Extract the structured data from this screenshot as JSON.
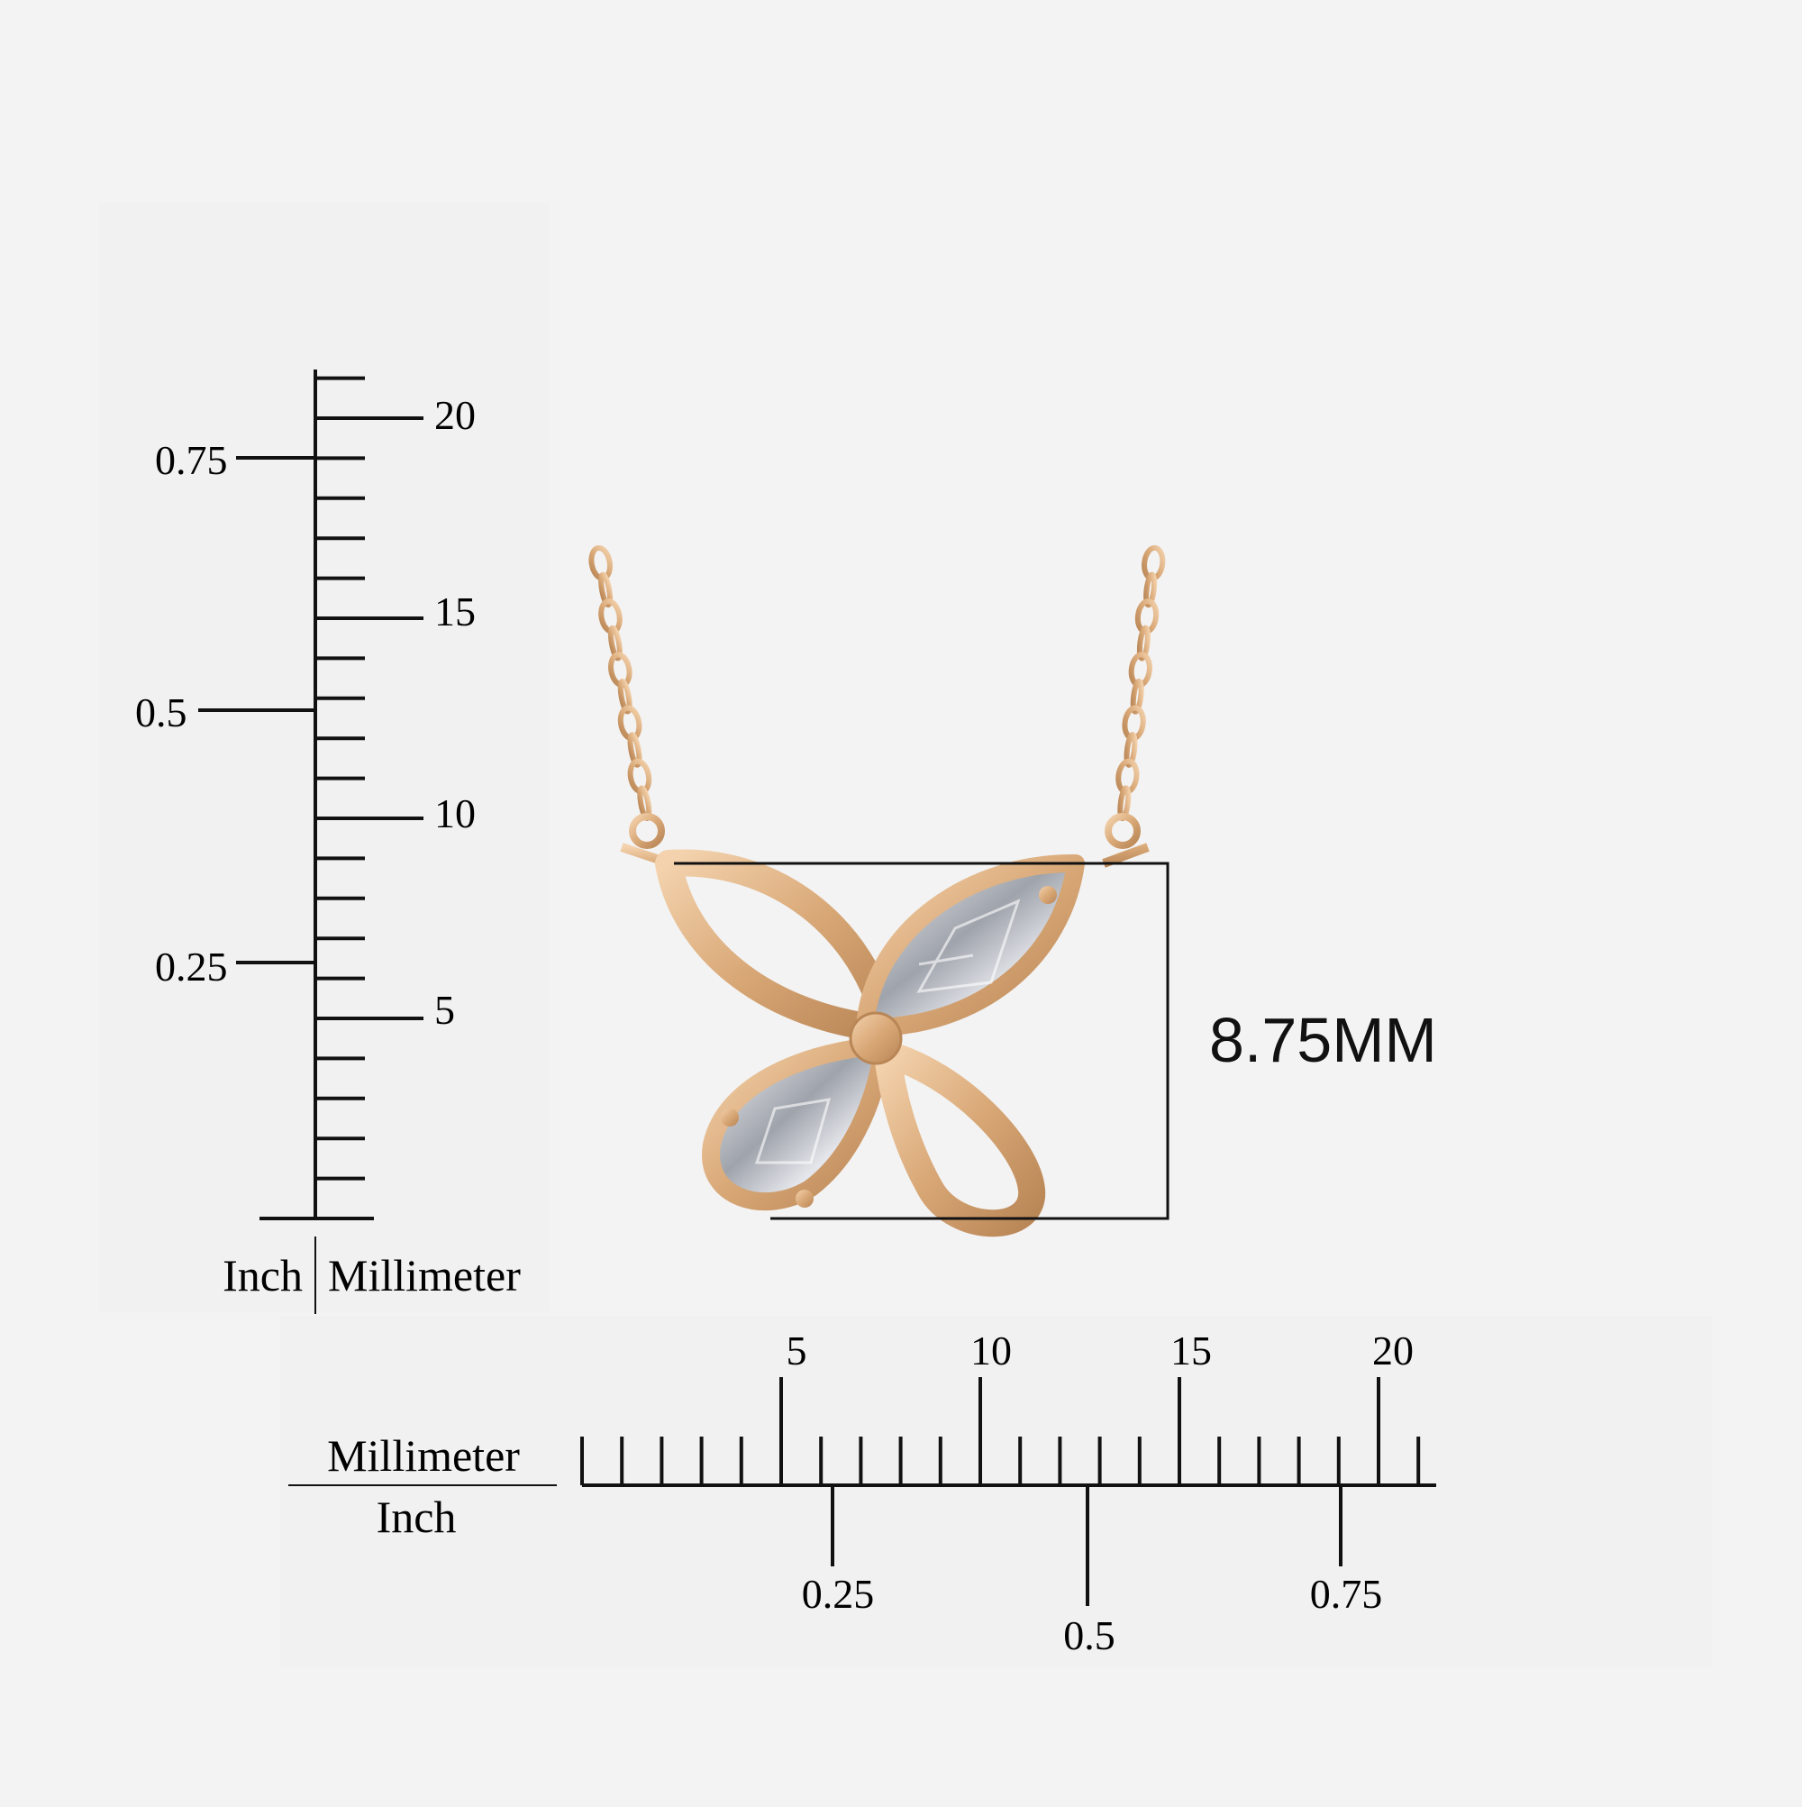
{
  "vertical_ruler": {
    "mm_labels": [
      "5",
      "10",
      "15",
      "20"
    ],
    "inch_labels": [
      "0.25",
      "0.5",
      "0.75"
    ],
    "unit_left": "Inch",
    "unit_right": "Millimeter"
  },
  "horizontal_ruler": {
    "mm_labels": [
      "5",
      "10",
      "15",
      "20"
    ],
    "inch_labels": [
      "0.25",
      "0.5",
      "0.75"
    ],
    "unit_top": "Millimeter",
    "unit_bottom": "Inch"
  },
  "product": {
    "measurement": "8.75MM",
    "metal_color": "#d9a877",
    "stone_color": "#c9ccd2"
  }
}
